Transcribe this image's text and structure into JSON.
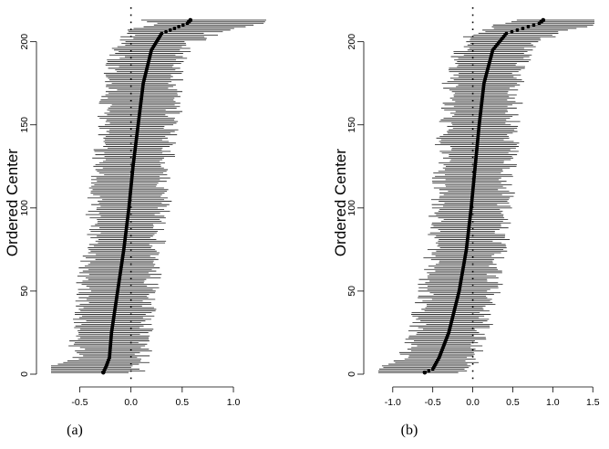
{
  "chart_data": [
    {
      "type": "scatter",
      "panel_label": "(a)",
      "ylabel": "Ordered Center",
      "xlim": [
        -0.78,
        1.32
      ],
      "ylim": [
        0,
        213
      ],
      "xticks": [
        -0.5,
        0.0,
        0.5,
        1.0
      ],
      "xtick_labels": [
        "-0.5",
        "0.0",
        "0.5",
        "1.0"
      ],
      "yticks": [
        0,
        50,
        100,
        150,
        200
      ],
      "ytick_labels": [
        "0",
        "50",
        "100",
        "150",
        "200"
      ],
      "reference_line_x": 0,
      "n_intervals": 213,
      "center_quantiles": [
        {
          "rank": 1,
          "value": -0.27
        },
        {
          "rank": 5,
          "value": -0.24
        },
        {
          "rank": 10,
          "value": -0.21
        },
        {
          "rank": 25,
          "value": -0.19
        },
        {
          "rank": 50,
          "value": -0.13
        },
        {
          "rank": 75,
          "value": -0.07
        },
        {
          "rank": 100,
          "value": -0.02
        },
        {
          "rank": 125,
          "value": 0.02
        },
        {
          "rank": 150,
          "value": 0.07
        },
        {
          "rank": 175,
          "value": 0.12
        },
        {
          "rank": 195,
          "value": 0.2
        },
        {
          "rank": 205,
          "value": 0.3
        },
        {
          "rank": 211,
          "value": 0.55
        },
        {
          "rank": 213,
          "value": 0.58
        }
      ],
      "interval_halfwidth": {
        "min": 0.24,
        "max": 0.55,
        "typical": 0.33
      },
      "outermost_interval": {
        "rank": 213,
        "lower": 0.1,
        "upper": 1.32
      },
      "grid": false,
      "legend": "none"
    },
    {
      "type": "scatter",
      "panel_label": "(b)",
      "ylabel": "Ordered Center",
      "xlim": [
        -1.18,
        1.52
      ],
      "ylim": [
        0,
        213
      ],
      "xticks": [
        -1.0,
        -0.5,
        0.0,
        0.5,
        1.0,
        1.5
      ],
      "xtick_labels": [
        "-1.0",
        "-0.5",
        "0.0",
        "0.5",
        "1.0",
        "1.5"
      ],
      "yticks": [
        0,
        50,
        100,
        150,
        200
      ],
      "ytick_labels": [
        "0",
        "50",
        "100",
        "150",
        "200"
      ],
      "reference_line_x": 0,
      "n_intervals": 213,
      "center_quantiles": [
        {
          "rank": 1,
          "value": -0.6
        },
        {
          "rank": 3,
          "value": -0.5
        },
        {
          "rank": 10,
          "value": -0.42
        },
        {
          "rank": 25,
          "value": -0.3
        },
        {
          "rank": 50,
          "value": -0.17
        },
        {
          "rank": 75,
          "value": -0.08
        },
        {
          "rank": 100,
          "value": -0.02
        },
        {
          "rank": 125,
          "value": 0.03
        },
        {
          "rank": 150,
          "value": 0.08
        },
        {
          "rank": 175,
          "value": 0.14
        },
        {
          "rank": 195,
          "value": 0.25
        },
        {
          "rank": 205,
          "value": 0.42
        },
        {
          "rank": 211,
          "value": 0.83
        },
        {
          "rank": 213,
          "value": 0.88
        }
      ],
      "interval_halfwidth": {
        "min": 0.3,
        "max": 0.7,
        "typical": 0.42
      },
      "outermost_interval": {
        "rank": 213,
        "lower": 0.55,
        "upper": 1.52
      },
      "grid": false,
      "legend": "none"
    }
  ]
}
